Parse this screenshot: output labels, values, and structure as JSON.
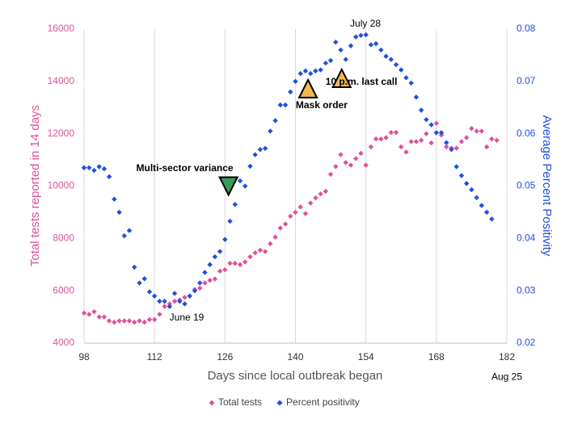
{
  "chart_data": {
    "type": "scatter",
    "xlabel": "Days since local outbreak began",
    "ylabel": "Total tests reported in 14 days",
    "y2label": "Average Percent Positivity",
    "xlim": [
      98,
      182
    ],
    "xticks": [
      98,
      112,
      126,
      140,
      154,
      168,
      182
    ],
    "ylim": [
      4000,
      16000
    ],
    "yticks": [
      4000,
      6000,
      8000,
      10000,
      12000,
      14000,
      16000
    ],
    "y2lim": [
      0.02,
      0.08
    ],
    "y2ticks": [
      0.02,
      0.03,
      0.04,
      0.05,
      0.06,
      0.07,
      0.08
    ],
    "grid": "x",
    "legend": "bottom",
    "x": [
      98,
      99,
      100,
      101,
      102,
      103,
      104,
      105,
      106,
      107,
      108,
      109,
      110,
      111,
      112,
      113,
      114,
      115,
      116,
      117,
      118,
      119,
      120,
      121,
      122,
      123,
      124,
      125,
      126,
      127,
      128,
      129,
      130,
      131,
      132,
      133,
      134,
      135,
      136,
      137,
      138,
      139,
      140,
      141,
      142,
      143,
      144,
      145,
      146,
      147,
      148,
      149,
      150,
      151,
      152,
      153,
      154,
      155,
      156,
      157,
      158,
      159,
      160,
      161,
      162,
      163,
      164,
      165,
      166,
      167,
      168,
      169,
      170,
      171,
      172,
      173,
      174,
      175,
      176,
      177,
      178,
      179,
      180
    ],
    "series": [
      {
        "name": "Total tests",
        "color": "#e0509a",
        "values": [
          5150,
          5100,
          5200,
          5000,
          5000,
          4850,
          4800,
          4850,
          4850,
          4850,
          4800,
          4850,
          4800,
          4900,
          4900,
          5100,
          5400,
          5500,
          5600,
          5650,
          5750,
          5800,
          6050,
          6100,
          6300,
          6400,
          6450,
          6750,
          6800,
          7050,
          7050,
          7000,
          7100,
          7300,
          7450,
          7550,
          7500,
          7800,
          8050,
          8400,
          8550,
          8850,
          9000,
          9200,
          8950,
          9350,
          9550,
          9700,
          9800,
          10450,
          10750,
          11200,
          10900,
          10800,
          11050,
          11250,
          10800,
          11500,
          11800,
          11800,
          11850,
          12050,
          12050,
          11500,
          11300,
          11700,
          11700,
          11750,
          12000,
          11650,
          12400,
          11950,
          11500,
          11450,
          11450,
          11700,
          11850,
          12200,
          12100,
          12100,
          11500,
          11800,
          11750
        ]
      },
      {
        "name": "Percent positivity",
        "color": "#1f4fe0",
        "axis": "y2",
        "values": [
          0.0535,
          0.0535,
          0.053,
          0.0537,
          0.0533,
          0.0518,
          0.0475,
          0.045,
          0.0405,
          0.0415,
          0.0345,
          0.0315,
          0.0323,
          0.0298,
          0.029,
          0.028,
          0.028,
          0.027,
          0.0295,
          0.028,
          0.0275,
          0.029,
          0.03,
          0.0315,
          0.0335,
          0.035,
          0.0365,
          0.0375,
          0.0398,
          0.0433,
          0.0465,
          0.051,
          0.05,
          0.0538,
          0.056,
          0.057,
          0.0572,
          0.0605,
          0.0625,
          0.0655,
          0.0655,
          0.068,
          0.07,
          0.0715,
          0.072,
          0.0715,
          0.072,
          0.0722,
          0.0735,
          0.074,
          0.0775,
          0.076,
          0.0742,
          0.0768,
          0.0785,
          0.0788,
          0.0789,
          0.077,
          0.0772,
          0.076,
          0.0748,
          0.0742,
          0.0732,
          0.0722,
          0.0707,
          0.0697,
          0.067,
          0.0645,
          0.0627,
          0.0617,
          0.0602,
          0.0602,
          0.0583,
          0.057,
          0.0537,
          0.052,
          0.0505,
          0.0493,
          0.0478,
          0.0463,
          0.045,
          0.0437,
          null
        ]
      }
    ],
    "annotations": [
      {
        "text": "Multi-sector variance",
        "x": 118,
        "y": 10670
      },
      {
        "text": "Mask order",
        "x": 145.2,
        "y": 13070
      },
      {
        "text": "10 p.m. last call",
        "x": 153.1,
        "y": 13970
      },
      {
        "text": "July 28",
        "x": 153.9,
        "y": 16190
      },
      {
        "text": "June 19",
        "x": 118.4,
        "y": 4960
      },
      {
        "text": "Aug 25",
        "x": 182,
        "y": 2700
      }
    ],
    "markers": [
      {
        "x": 126.7,
        "y": 10000,
        "color": "#3a9a5a",
        "direction": "down"
      },
      {
        "x": 142.5,
        "y": 13720,
        "color": "#f2b84b",
        "direction": "up"
      },
      {
        "x": 149.2,
        "y": 14120,
        "color": "#f2b84b",
        "direction": "up"
      }
    ]
  }
}
